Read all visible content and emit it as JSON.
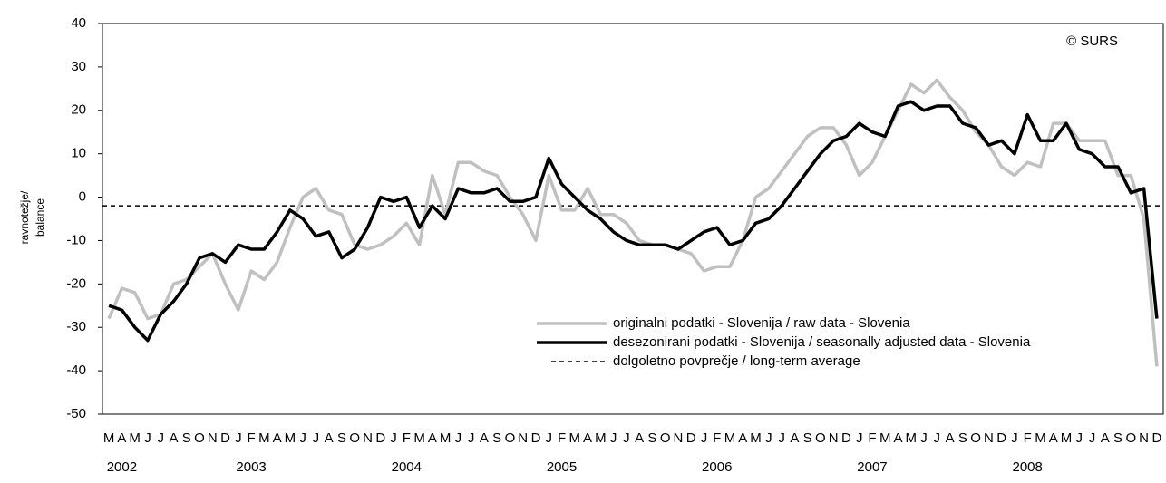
{
  "chart_data": {
    "type": "line",
    "annotation": "© SURS",
    "y_label": [
      "ravnotežje/",
      "balance"
    ],
    "categories": [
      "M",
      "A",
      "M",
      "J",
      "J",
      "A",
      "S",
      "O",
      "N",
      "D",
      "J",
      "F",
      "M",
      "A",
      "M",
      "J",
      "J",
      "A",
      "S",
      "O",
      "N",
      "D",
      "J",
      "F",
      "M",
      "A",
      "M",
      "J",
      "J",
      "A",
      "S",
      "O",
      "N",
      "D",
      "J",
      "F",
      "M",
      "A",
      "M",
      "J",
      "J",
      "A",
      "S",
      "O",
      "N",
      "D",
      "J",
      "F",
      "M",
      "A",
      "M",
      "J",
      "J",
      "A",
      "S",
      "O",
      "N",
      "D",
      "J",
      "F",
      "M",
      "A",
      "M",
      "J",
      "J",
      "A",
      "S",
      "O",
      "N",
      "D",
      "J",
      "F",
      "M",
      "A",
      "M",
      "J",
      "J",
      "A",
      "S",
      "O",
      "N",
      "D"
    ],
    "category_groups": [
      {
        "label": "2002",
        "count": 10
      },
      {
        "label": "2003",
        "count": 12
      },
      {
        "label": "2004",
        "count": 12
      },
      {
        "label": "2005",
        "count": 12
      },
      {
        "label": "2006",
        "count": 12
      },
      {
        "label": "2007",
        "count": 12
      },
      {
        "label": "2008",
        "count": 12
      }
    ],
    "series": [
      {
        "name": "originalni podatki - Slovenija / raw data - Slovenia",
        "color": "#c0c0c0",
        "values": [
          -28,
          -21,
          -22,
          -28,
          -27,
          -20,
          -19,
          -16,
          -13,
          -20,
          -26,
          -17,
          -19,
          -15,
          -7,
          0,
          2,
          -3,
          -4,
          -11,
          -12,
          -11,
          -9,
          -6,
          -11,
          5,
          -4,
          8,
          8,
          6,
          5,
          0,
          -4,
          -10,
          5,
          -3,
          -3,
          2,
          -4,
          -4,
          -6,
          -10,
          -11,
          -11,
          -12,
          -13,
          -17,
          -16,
          -16,
          -10,
          0,
          2,
          6,
          10,
          14,
          16,
          16,
          12,
          5,
          8,
          14,
          20,
          26,
          24,
          27,
          23,
          20,
          15,
          12,
          7,
          5,
          8,
          7,
          17,
          17,
          13,
          13,
          13,
          5,
          5,
          -5,
          -39
        ]
      },
      {
        "name": "desezonirani podatki - Slovenija / seasonally adjusted data - Slovenia",
        "color": "#000000",
        "values": [
          -25,
          -26,
          -30,
          -33,
          -27,
          -24,
          -20,
          -14,
          -13,
          -15,
          -11,
          -12,
          -12,
          -8,
          -3,
          -5,
          -9,
          -8,
          -14,
          -12,
          -7,
          0,
          -1,
          0,
          -7,
          -2,
          -5,
          2,
          1,
          1,
          2,
          -1,
          -1,
          0,
          9,
          3,
          0,
          -3,
          -5,
          -8,
          -10,
          -11,
          -11,
          -11,
          -12,
          -10,
          -8,
          -7,
          -11,
          -10,
          -6,
          -5,
          -2,
          2,
          6,
          10,
          13,
          14,
          17,
          15,
          14,
          21,
          22,
          20,
          21,
          21,
          17,
          16,
          12,
          13,
          10,
          19,
          13,
          13,
          17,
          11,
          10,
          7,
          7,
          1,
          2,
          -28
        ]
      }
    ],
    "reference_line": {
      "name": "dolgoletno povprečje / long-term average",
      "value": -2,
      "color": "#000000"
    },
    "ylim": [
      -50,
      40
    ],
    "yticks": [
      -50,
      -40,
      -30,
      -20,
      -10,
      0,
      10,
      20,
      30,
      40
    ],
    "legend": "bottom-right"
  }
}
